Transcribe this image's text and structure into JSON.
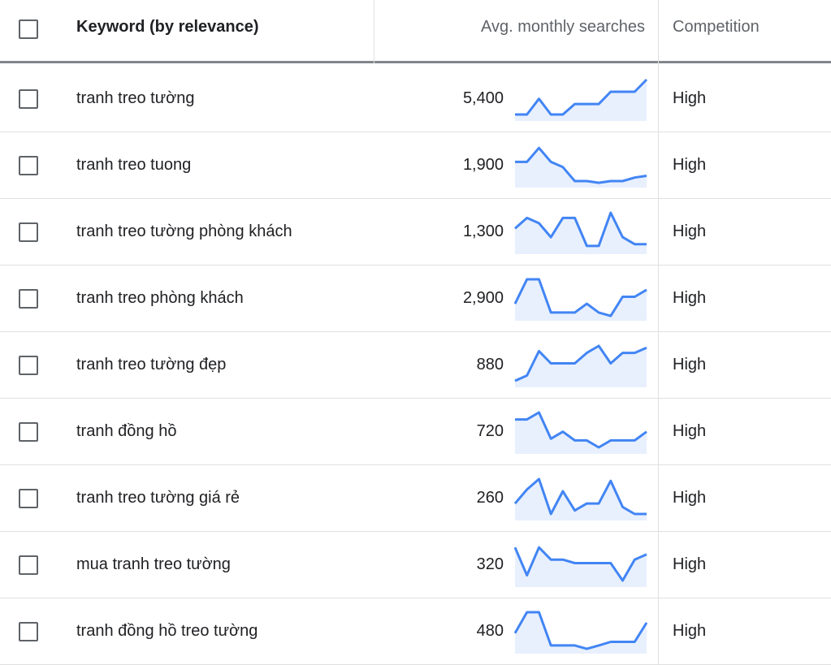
{
  "header": {
    "keyword_label": "Keyword (by relevance)",
    "searches_label": "Avg. monthly searches",
    "competition_label": "Competition"
  },
  "colors": {
    "sparkline": "#4285f4",
    "sparkline_fill": "#e8f0fe",
    "divider": "#e0e0e0",
    "header_rule": "#80868b"
  },
  "rows": [
    {
      "keyword": "tranh treo tường",
      "searches": "5,400",
      "competition": "High",
      "trend": [
        1,
        1,
        0.55,
        1,
        1,
        0.7,
        0.7,
        0.7,
        0.35,
        0.35,
        0.35,
        0
      ]
    },
    {
      "keyword": "tranh treo tuong",
      "searches": "1,900",
      "competition": "High",
      "trend": [
        0.45,
        0.45,
        0.05,
        0.45,
        0.6,
        1,
        1,
        1.05,
        1,
        1,
        0.9,
        0.85
      ]
    },
    {
      "keyword": "tranh treo tường phòng khách",
      "searches": "1,300",
      "competition": "High",
      "trend": [
        0.45,
        0.15,
        0.3,
        0.7,
        0.15,
        0.15,
        0.95,
        0.95,
        0,
        0.7,
        0.9,
        0.9
      ]
    },
    {
      "keyword": "tranh treo phòng khách",
      "searches": "2,900",
      "competition": "High",
      "trend": [
        0.7,
        0,
        0,
        0.95,
        0.95,
        0.95,
        0.7,
        0.95,
        1.05,
        0.5,
        0.5,
        0.3
      ]
    },
    {
      "keyword": "tranh treo tường đẹp",
      "searches": "880",
      "competition": "High",
      "trend": [
        1,
        0.85,
        0.15,
        0.5,
        0.5,
        0.5,
        0.2,
        0,
        0.5,
        0.2,
        0.2,
        0.05
      ]
    },
    {
      "keyword": "tranh đồng hồ",
      "searches": "720",
      "competition": "High",
      "trend": [
        0.2,
        0.2,
        0,
        0.75,
        0.55,
        0.8,
        0.8,
        1,
        0.8,
        0.8,
        0.8,
        0.55
      ]
    },
    {
      "keyword": "tranh treo tường giá rẻ",
      "searches": "260",
      "competition": "High",
      "trend": [
        0.7,
        0.3,
        0,
        1,
        0.35,
        0.9,
        0.7,
        0.7,
        0.05,
        0.8,
        1,
        1
      ]
    },
    {
      "keyword": "mua tranh treo tường",
      "searches": "320",
      "competition": "High",
      "trend": [
        0.05,
        0.85,
        0.05,
        0.4,
        0.4,
        0.5,
        0.5,
        0.5,
        0.5,
        1,
        0.4,
        0.25
      ]
    },
    {
      "keyword": "tranh đồng hồ treo tường",
      "searches": "480",
      "competition": "High",
      "trend": [
        0.6,
        0,
        0,
        0.95,
        0.95,
        0.95,
        1.05,
        0.95,
        0.85,
        0.85,
        0.85,
        0.3
      ]
    }
  ]
}
